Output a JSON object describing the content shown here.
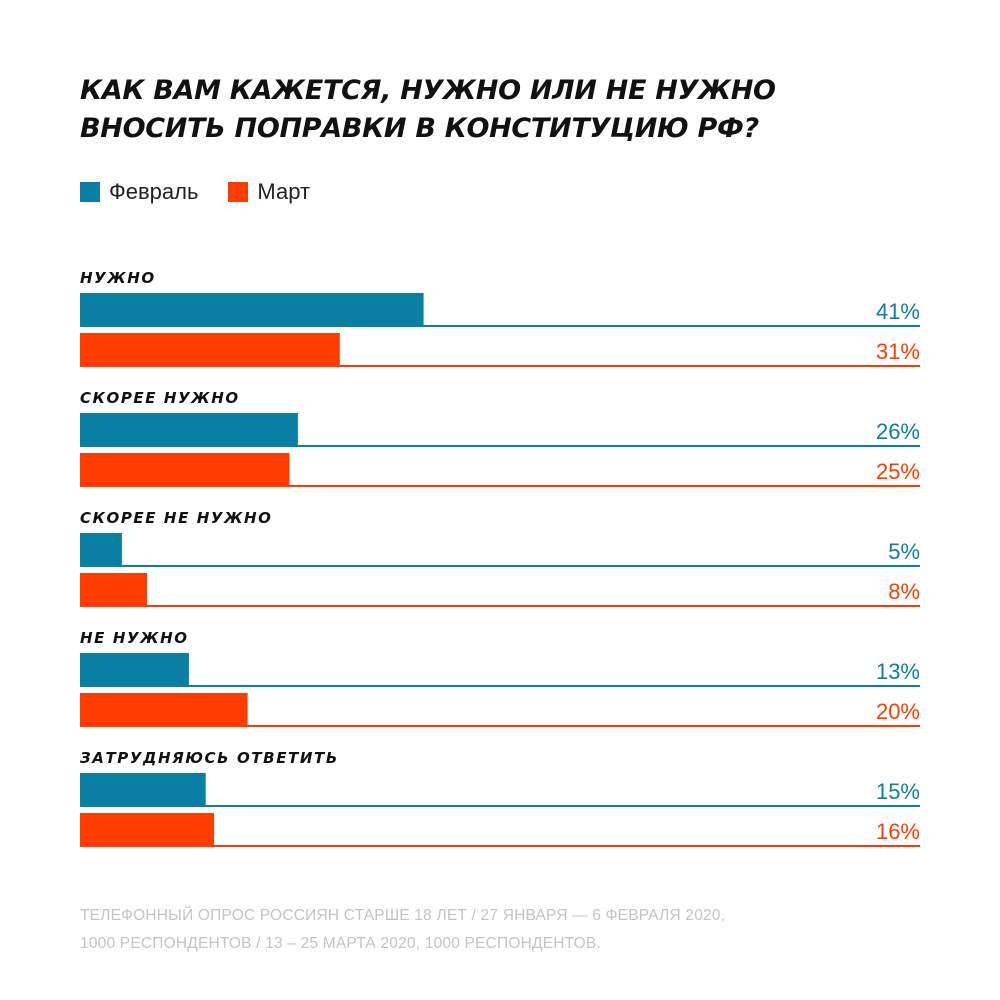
{
  "title_lines": [
    "КАК ВАМ КАЖЕТСЯ, НУЖНО ИЛИ НЕ НУЖНО",
    "ВНОСИТЬ ПОПРАВКИ В КОНСТИТУЦИЮ РФ?"
  ],
  "legend": [
    {
      "label": "Февраль",
      "color": "#0a7fa4"
    },
    {
      "label": "Март",
      "color": "#ff3c00"
    }
  ],
  "footnote_lines": [
    "ТЕЛЕФОННЫЙ ОПРОС РОССИЯН СТАРШЕ 18 ЛЕТ / 27 ЯНВАРЯ — 6 ФЕВРАЛЯ 2020,",
    "1000 РЕСПОНДЕНТОВ / 13 – 25 МАРТА 2020, 1000 РЕСПОНДЕНТОВ."
  ],
  "chart_data": {
    "type": "bar",
    "orientation": "horizontal",
    "title": "КАК ВАМ КАЖЕТСЯ, НУЖНО ИЛИ НЕ НУЖНО ВНОСИТЬ ПОПРАВКИ В КОНСТИТУЦИЮ РФ?",
    "categories": [
      "НУЖНО",
      "СКОРЕЕ НУЖНО",
      "СКОРЕЕ НЕ НУЖНО",
      "НЕ НУЖНО",
      "ЗАТРУДНЯЮСЬ ОТВЕТИТЬ"
    ],
    "series": [
      {
        "name": "Февраль",
        "color": "#0a7fa4",
        "values": [
          41,
          26,
          5,
          13,
          15
        ],
        "labels": [
          "41%",
          "26%",
          "5%",
          "13%",
          "15%"
        ]
      },
      {
        "name": "Март",
        "color": "#ff3c00",
        "values": [
          31,
          25,
          8,
          20,
          16
        ],
        "labels": [
          "31%",
          "25%",
          "8%",
          "20%",
          "16%"
        ]
      }
    ],
    "xlim": [
      0,
      100
    ],
    "unit": "%",
    "legend_position": "top-left",
    "grid": false
  }
}
